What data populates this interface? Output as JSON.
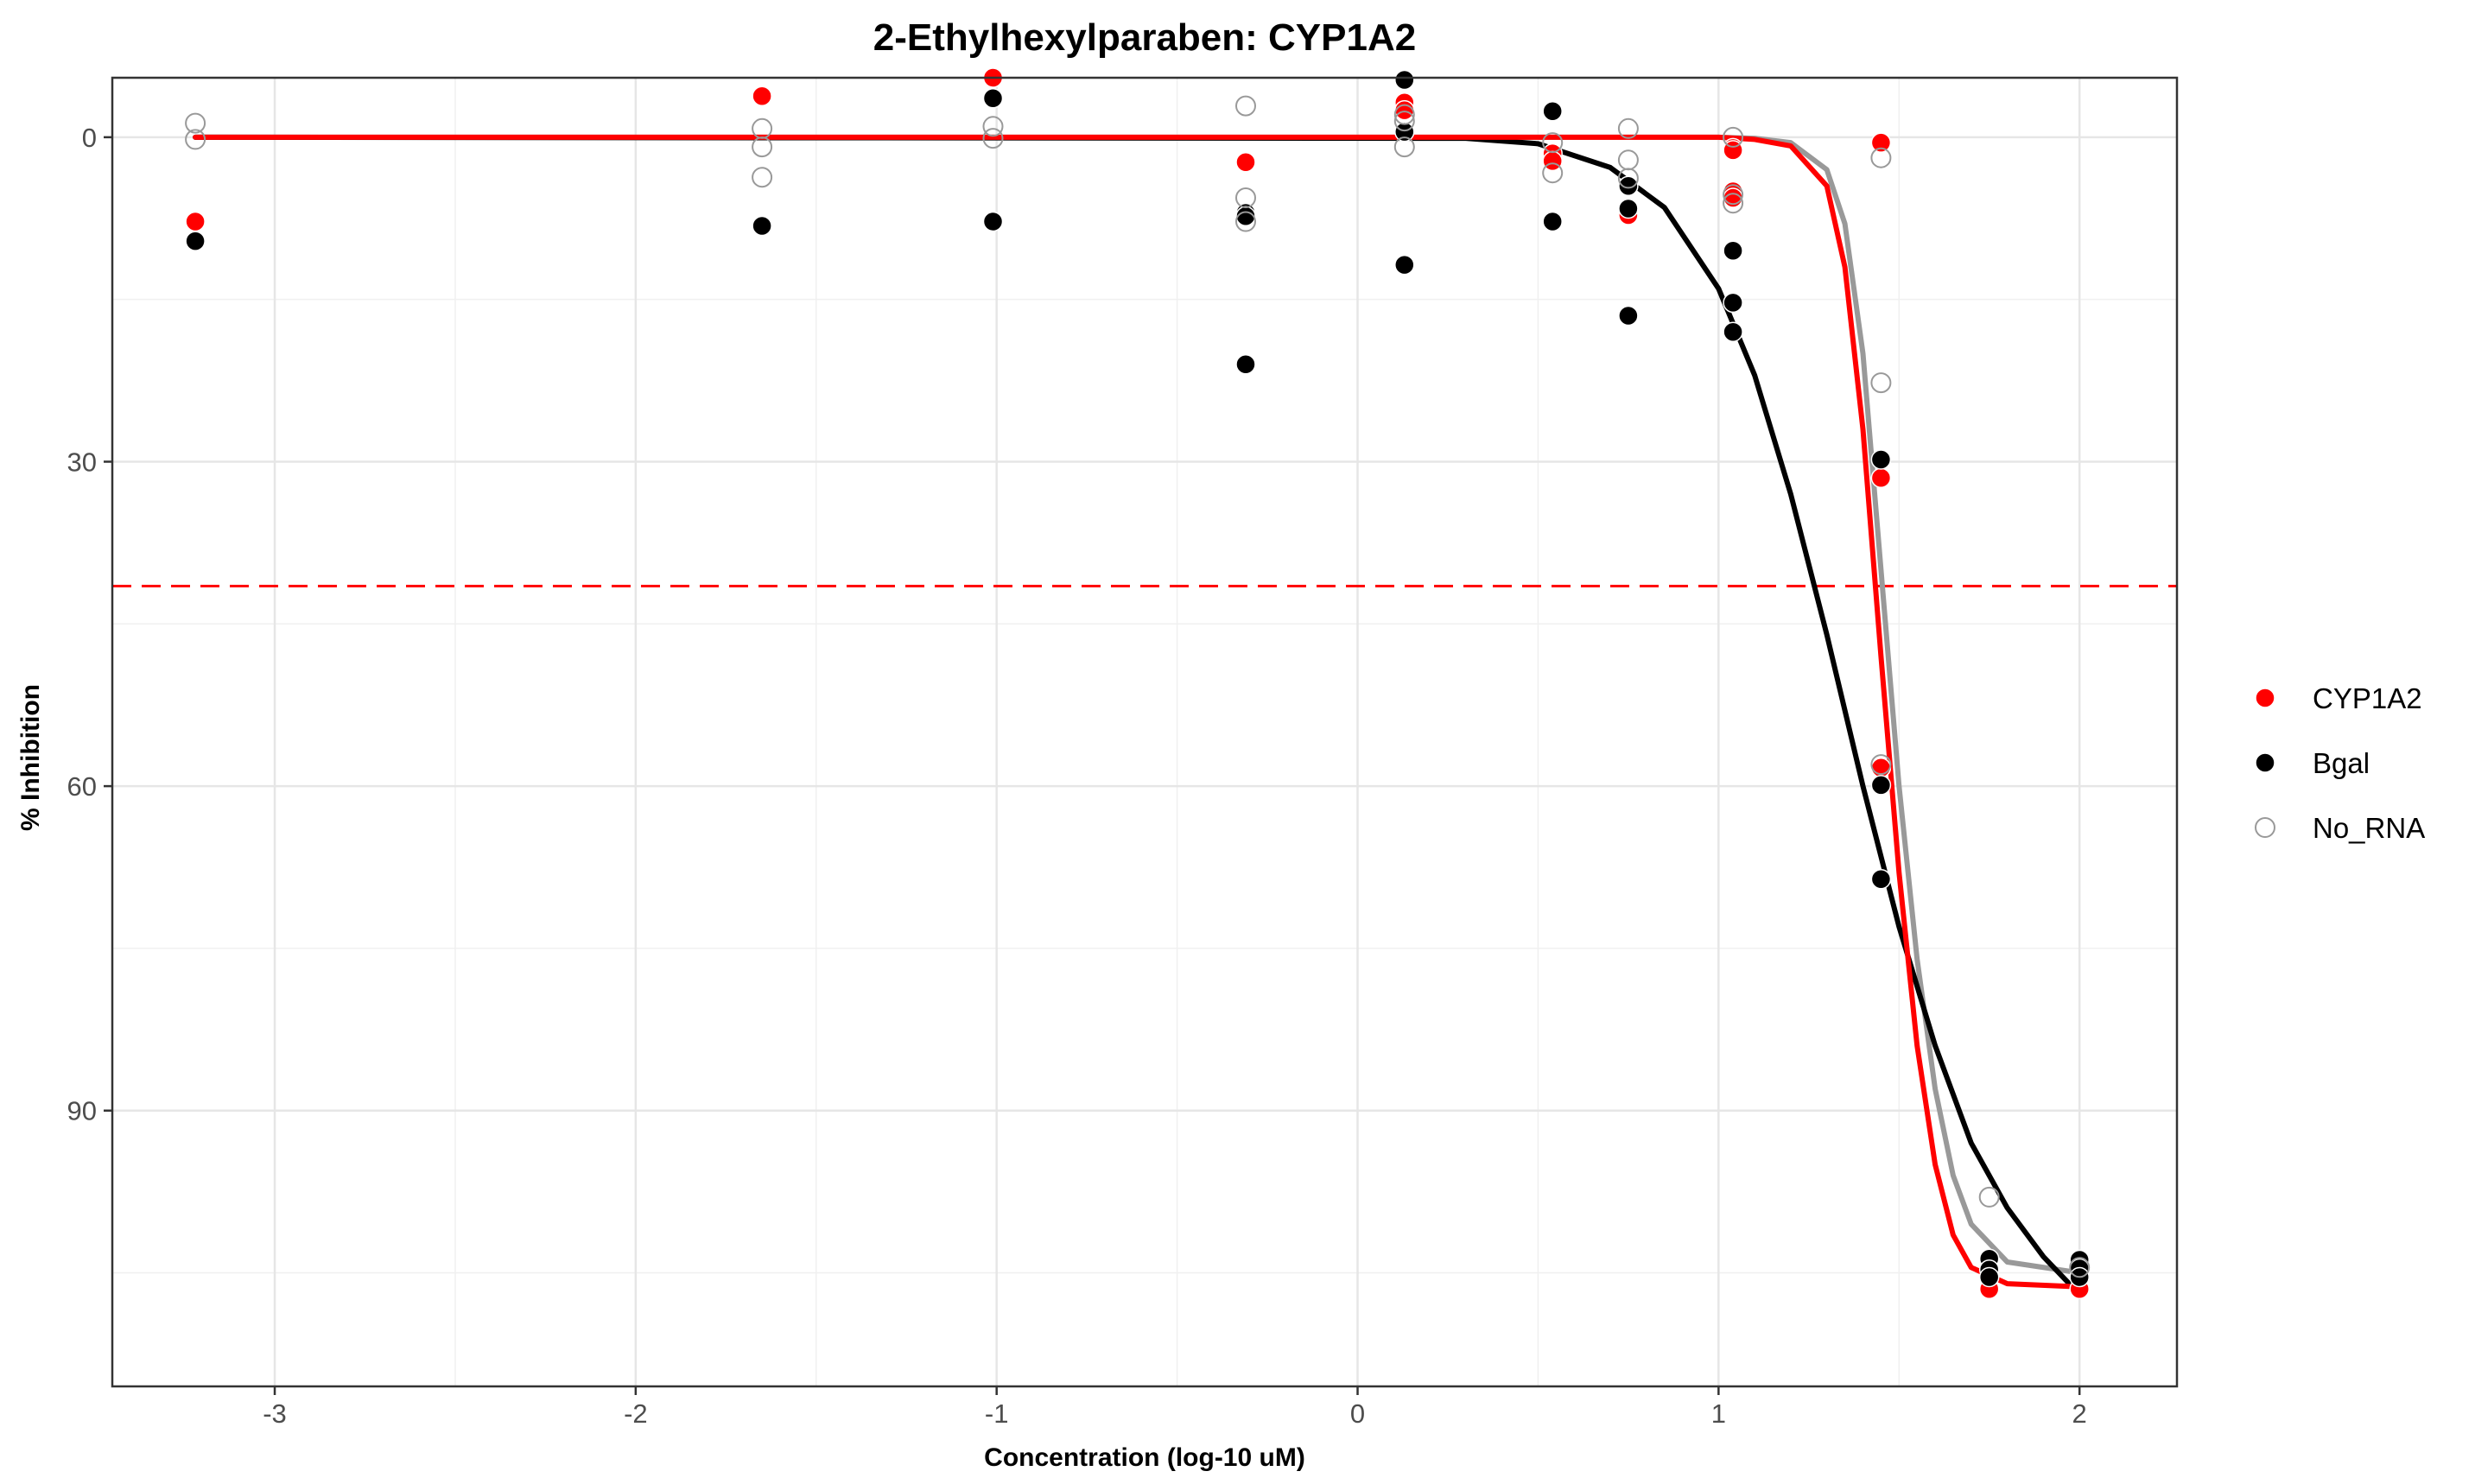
{
  "chart_data": {
    "type": "scatter",
    "title": "2-Ethylhexylparaben: CYP1A2",
    "xlabel": "Concentration (log-10 uM)",
    "ylabel": "% Inhibition",
    "xlim": [
      -3.45,
      2.27
    ],
    "ylim": [
      115.5,
      -5.5
    ],
    "y_reversed": true,
    "x_ticks": [
      -3,
      -2,
      -1,
      0,
      1,
      2
    ],
    "y_ticks": [
      0,
      30,
      60,
      90
    ],
    "grid": true,
    "threshold_line": {
      "y": 41.5,
      "color": "#ff0000",
      "style": "dashed"
    },
    "legend_position": "right",
    "series": [
      {
        "name": "CYP1A2",
        "color": "#ff0000",
        "marker": "filled",
        "points": [
          [
            -3.22,
            7.8
          ],
          [
            -1.65,
            -3.8
          ],
          [
            -1.01,
            -5.5
          ],
          [
            -0.31,
            2.3
          ],
          [
            0.13,
            -3.2
          ],
          [
            0.13,
            -2.5
          ],
          [
            0.54,
            1.5
          ],
          [
            0.54,
            2.2
          ],
          [
            0.75,
            7.2
          ],
          [
            1.04,
            1.0
          ],
          [
            1.04,
            1.2
          ],
          [
            1.04,
            5.0
          ],
          [
            1.04,
            5.6
          ],
          [
            1.45,
            0.5
          ],
          [
            1.45,
            31.5
          ],
          [
            1.45,
            58.3
          ],
          [
            1.75,
            106.5
          ],
          [
            2.0,
            106.5
          ]
        ],
        "curve": [
          [
            -3.22,
            0
          ],
          [
            1.0,
            0
          ],
          [
            1.1,
            0.2
          ],
          [
            1.2,
            0.8
          ],
          [
            1.3,
            4.5
          ],
          [
            1.35,
            12
          ],
          [
            1.4,
            27
          ],
          [
            1.45,
            48
          ],
          [
            1.5,
            68
          ],
          [
            1.55,
            84
          ],
          [
            1.6,
            95
          ],
          [
            1.65,
            101.5
          ],
          [
            1.7,
            104.5
          ],
          [
            1.8,
            106
          ],
          [
            2.0,
            106.3
          ]
        ]
      },
      {
        "name": "Bgal",
        "color": "#000000",
        "marker": "filled",
        "points": [
          [
            -3.22,
            9.6
          ],
          [
            -1.65,
            8.2
          ],
          [
            -1.01,
            7.8
          ],
          [
            -1.01,
            -3.6
          ],
          [
            -0.31,
            7.0
          ],
          [
            -0.31,
            7.3
          ],
          [
            -0.31,
            21.0
          ],
          [
            0.13,
            11.8
          ],
          [
            0.13,
            -0.5
          ],
          [
            0.13,
            -5.3
          ],
          [
            0.54,
            -2.4
          ],
          [
            0.54,
            7.8
          ],
          [
            0.75,
            4.5
          ],
          [
            0.75,
            6.6
          ],
          [
            0.75,
            16.5
          ],
          [
            1.04,
            10.5
          ],
          [
            1.04,
            15.3
          ],
          [
            1.04,
            18.0
          ],
          [
            1.45,
            29.8
          ],
          [
            1.45,
            59.9
          ],
          [
            1.45,
            68.6
          ],
          [
            1.75,
            103.7
          ],
          [
            1.75,
            104.7
          ],
          [
            1.75,
            105.4
          ],
          [
            2.0,
            103.8
          ],
          [
            2.0,
            104.6
          ],
          [
            2.0,
            105.4
          ]
        ],
        "curve": [
          [
            -3.22,
            0
          ],
          [
            0.3,
            0.1
          ],
          [
            0.5,
            0.6
          ],
          [
            0.7,
            2.8
          ],
          [
            0.85,
            6.5
          ],
          [
            1.0,
            14
          ],
          [
            1.1,
            22
          ],
          [
            1.2,
            33
          ],
          [
            1.3,
            46
          ],
          [
            1.4,
            60
          ],
          [
            1.5,
            73
          ],
          [
            1.6,
            84
          ],
          [
            1.7,
            93
          ],
          [
            1.8,
            99
          ],
          [
            1.9,
            103.5
          ],
          [
            2.0,
            107
          ]
        ]
      },
      {
        "name": "No_RNA",
        "color": "#999999",
        "marker": "open",
        "points": [
          [
            -3.22,
            -1.3
          ],
          [
            -3.22,
            0.2
          ],
          [
            -1.65,
            -0.8
          ],
          [
            -1.65,
            0.9
          ],
          [
            -1.65,
            3.7
          ],
          [
            -1.01,
            -1.0
          ],
          [
            -1.01,
            0.1
          ],
          [
            -0.31,
            -2.9
          ],
          [
            -0.31,
            5.6
          ],
          [
            -0.31,
            7.8
          ],
          [
            0.13,
            -2.1
          ],
          [
            0.13,
            -1.5
          ],
          [
            0.13,
            0.9
          ],
          [
            0.54,
            0.5
          ],
          [
            0.54,
            3.3
          ],
          [
            0.75,
            -0.8
          ],
          [
            0.75,
            2.1
          ],
          [
            0.75,
            3.8
          ],
          [
            1.04,
            0.0
          ],
          [
            1.04,
            5.3
          ],
          [
            1.04,
            6.1
          ],
          [
            1.45,
            1.9
          ],
          [
            1.45,
            22.7
          ],
          [
            1.45,
            58.0
          ],
          [
            1.75,
            98.0
          ],
          [
            2.0,
            104.5
          ]
        ],
        "curve": [
          [
            -3.22,
            0
          ],
          [
            1.0,
            0
          ],
          [
            1.1,
            0.1
          ],
          [
            1.2,
            0.5
          ],
          [
            1.3,
            3
          ],
          [
            1.35,
            8
          ],
          [
            1.4,
            20
          ],
          [
            1.45,
            40
          ],
          [
            1.5,
            60
          ],
          [
            1.55,
            76
          ],
          [
            1.6,
            88
          ],
          [
            1.65,
            96
          ],
          [
            1.7,
            100.5
          ],
          [
            1.8,
            104
          ],
          [
            2.0,
            105
          ]
        ]
      }
    ]
  }
}
